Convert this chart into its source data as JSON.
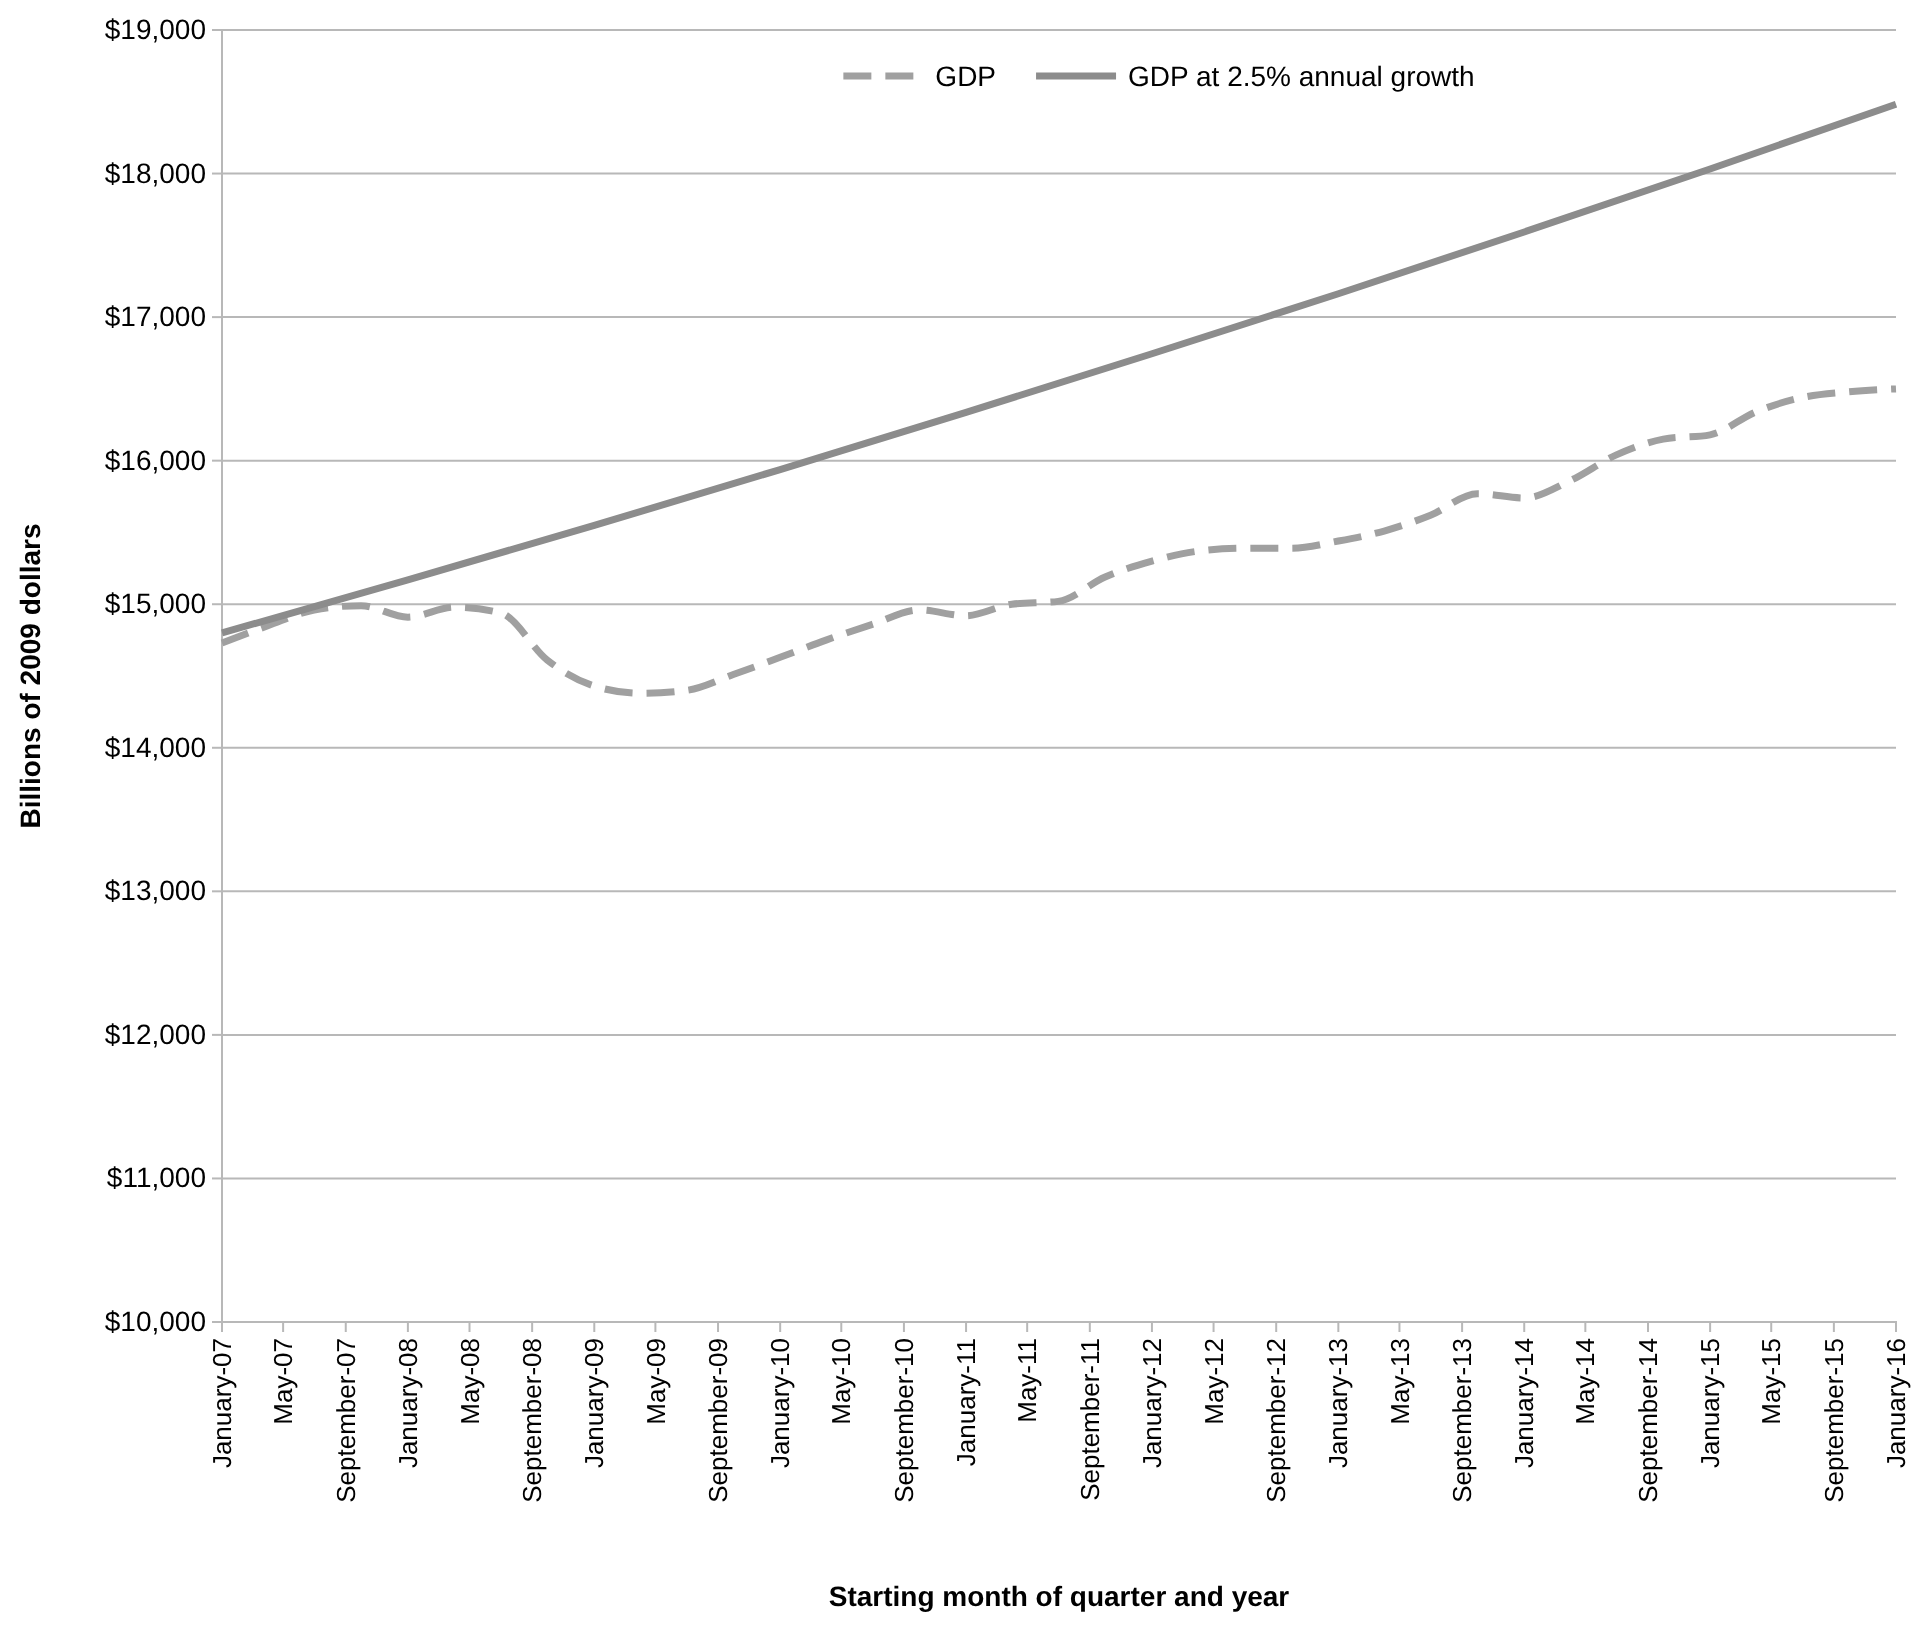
{
  "chart_data": {
    "type": "line",
    "xlabel": "Starting month of quarter and year",
    "ylabel": "Billions of 2009 dollars",
    "x": [
      "2007-01",
      "2007-04",
      "2007-07",
      "2007-10",
      "2008-01",
      "2008-04",
      "2008-07",
      "2008-10",
      "2009-01",
      "2009-04",
      "2009-07",
      "2009-10",
      "2010-01",
      "2010-04",
      "2010-07",
      "2010-10",
      "2011-01",
      "2011-04",
      "2011-07",
      "2011-10",
      "2012-01",
      "2012-04",
      "2012-07",
      "2012-10",
      "2013-01",
      "2013-04",
      "2013-07",
      "2013-10",
      "2014-01",
      "2014-04",
      "2014-07",
      "2014-10",
      "2015-01",
      "2015-04",
      "2015-07",
      "2015-10",
      "2016-01"
    ],
    "series": [
      {
        "name": "GDP",
        "color": "#a0a0a0",
        "line_style": "dashed",
        "values": [
          14730,
          14850,
          14960,
          14990,
          14910,
          14980,
          14940,
          14610,
          14430,
          14380,
          14400,
          14510,
          14630,
          14750,
          14860,
          14960,
          14920,
          15000,
          15020,
          15190,
          15300,
          15370,
          15390,
          15390,
          15440,
          15510,
          15620,
          15770,
          15740,
          15860,
          16040,
          16150,
          16180,
          16340,
          16440,
          16480,
          16500
        ]
      },
      {
        "name": "GDP at 2.5% annual growth",
        "color": "#8c8c8c",
        "line_style": "solid",
        "x": [
          "2007-01",
          "2008-01",
          "2009-01",
          "2010-01",
          "2011-01",
          "2012-01",
          "2013-01",
          "2014-01",
          "2015-01",
          "2016-01"
        ],
        "values": [
          14800,
          15170,
          15549,
          15938,
          16336,
          16745,
          17163,
          17593,
          18032,
          18483
        ]
      }
    ],
    "xlim": [
      "2007-01",
      "2016-01"
    ],
    "xticks": [
      {
        "value": "2007-01",
        "label": "January-07"
      },
      {
        "value": "2007-05",
        "label": "May-07"
      },
      {
        "value": "2007-09",
        "label": "September-07"
      },
      {
        "value": "2008-01",
        "label": "January-08"
      },
      {
        "value": "2008-05",
        "label": "May-08"
      },
      {
        "value": "2008-09",
        "label": "September-08"
      },
      {
        "value": "2009-01",
        "label": "January-09"
      },
      {
        "value": "2009-05",
        "label": "May-09"
      },
      {
        "value": "2009-09",
        "label": "September-09"
      },
      {
        "value": "2010-01",
        "label": "January-10"
      },
      {
        "value": "2010-05",
        "label": "May-10"
      },
      {
        "value": "2010-09",
        "label": "September-10"
      },
      {
        "value": "2011-01",
        "label": "January-11"
      },
      {
        "value": "2011-05",
        "label": "May-11"
      },
      {
        "value": "2011-09",
        "label": "September-11"
      },
      {
        "value": "2012-01",
        "label": "January-12"
      },
      {
        "value": "2012-05",
        "label": "May-12"
      },
      {
        "value": "2012-09",
        "label": "September-12"
      },
      {
        "value": "2013-01",
        "label": "January-13"
      },
      {
        "value": "2013-05",
        "label": "May-13"
      },
      {
        "value": "2013-09",
        "label": "September-13"
      },
      {
        "value": "2014-01",
        "label": "January-14"
      },
      {
        "value": "2014-05",
        "label": "May-14"
      },
      {
        "value": "2014-09",
        "label": "September-14"
      },
      {
        "value": "2015-01",
        "label": "January-15"
      },
      {
        "value": "2015-05",
        "label": "May-15"
      },
      {
        "value": "2015-09",
        "label": "September-15"
      },
      {
        "value": "2016-01",
        "label": "January-16"
      }
    ],
    "ylim": [
      10000,
      19000
    ],
    "yticks": [
      {
        "value": 10000,
        "label": "$10,000"
      },
      {
        "value": 11000,
        "label": "$11,000"
      },
      {
        "value": 12000,
        "label": "$12,000"
      },
      {
        "value": 13000,
        "label": "$13,000"
      },
      {
        "value": 14000,
        "label": "$14,000"
      },
      {
        "value": 15000,
        "label": "$15,000"
      },
      {
        "value": 16000,
        "label": "$16,000"
      },
      {
        "value": 17000,
        "label": "$17,000"
      },
      {
        "value": 18000,
        "label": "$18,000"
      },
      {
        "value": 19000,
        "label": "$19,000"
      }
    ],
    "grid": "y",
    "legend": "top",
    "marker": "none"
  }
}
